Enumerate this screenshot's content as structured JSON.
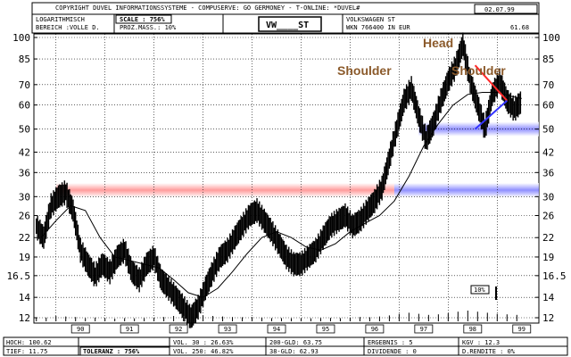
{
  "header": {
    "copyright": "COPYRIGHT  DUVEL INFORMATIONSSYSTEME - COMPUSERVE: GO GERMONEY - T-ONLINE: *DUVEL#",
    "date": "02.07.99",
    "box1_line1": "LOGARITHMISCH",
    "box1_line2": "BEREICH :VOLLE D.",
    "box2_line1": "SCALE : 756%",
    "box2_line2": "PROZ.MASS.: 10%",
    "ticker": "VW____ST",
    "box4_line1": "VOLKSWAGEN ST",
    "box4_line2": "WKN 766400   IN EUR",
    "last_price": "61.68"
  },
  "footer": {
    "hoch": "HOCH: 100.62",
    "tief": "TIEF: 11.75",
    "toleranz": "TOLERANZ : 756%",
    "vol30": "VOL. 30 : 26.63%",
    "vol250": "VOL. 250: 46.82%",
    "gld200": "200-GLD: 63.75",
    "gld38": "38-GLD: 62.93",
    "ergebnis": "ERGEBNIS :  5",
    "dividende": "DIVIDENDE :  0",
    "kgv": "KGV       : 12.3",
    "rendite": "D.RENDITE : 0%"
  },
  "annotations": {
    "head": "Head",
    "shoulder_left": "Shoulder",
    "shoulder_right": "Shoulder",
    "percent_box": "10%"
  },
  "colors": {
    "annotation_text": "#8b5a2b",
    "red_band": "#ff8a8a",
    "blue_band": "#7b7bff",
    "red_line": "#ff2a2a",
    "blue_line": "#3333ff",
    "grid": "#000000"
  },
  "chart_data": {
    "type": "line",
    "scale": "log",
    "ylim": [
      12,
      100
    ],
    "y_ticks": [
      12,
      14,
      16.5,
      19,
      22,
      26,
      30,
      36,
      42,
      50,
      60,
      70,
      85,
      100
    ],
    "y_tick_labels": [
      "12",
      "14",
      "16.5",
      "19",
      "22",
      "26",
      "30",
      "36",
      "42",
      "50",
      "60",
      "70",
      "85",
      "100"
    ],
    "x_ticks": [
      1990,
      1991,
      1992,
      1993,
      1994,
      1995,
      1996,
      1997,
      1998,
      1999
    ],
    "x_tick_labels": [
      "90",
      "91",
      "92",
      "93",
      "94",
      "95",
      "96",
      "97",
      "98",
      "99"
    ],
    "xlim": [
      1989.55,
      1999.85
    ],
    "price": {
      "x": [
        1989.6,
        1989.75,
        1989.9,
        1990.05,
        1990.2,
        1990.35,
        1990.5,
        1990.65,
        1990.8,
        1990.95,
        1991.1,
        1991.25,
        1991.4,
        1991.55,
        1991.7,
        1991.85,
        1992.0,
        1992.15,
        1992.3,
        1992.45,
        1992.6,
        1992.75,
        1992.9,
        1993.05,
        1993.2,
        1993.35,
        1993.5,
        1993.65,
        1993.8,
        1993.95,
        1994.1,
        1994.25,
        1994.4,
        1994.55,
        1994.7,
        1994.85,
        1995.0,
        1995.15,
        1995.3,
        1995.45,
        1995.6,
        1995.75,
        1995.9,
        1996.05,
        1996.2,
        1996.35,
        1996.5,
        1996.65,
        1996.8,
        1996.95,
        1997.1,
        1997.25,
        1997.4,
        1997.55,
        1997.7,
        1997.85,
        1998.0,
        1998.15,
        1998.3,
        1998.45,
        1998.6,
        1998.75,
        1998.9,
        1999.05,
        1999.2,
        1999.35,
        1999.5
      ],
      "y": [
        24,
        22,
        28,
        30,
        31,
        27,
        20,
        18,
        16.5,
        18,
        17,
        19,
        20,
        17,
        16,
        18,
        19,
        16,
        15,
        14,
        13,
        12,
        13,
        15,
        17,
        19,
        20,
        22,
        24,
        26,
        27,
        25,
        23,
        21,
        19,
        18,
        18,
        19,
        20,
        22,
        24,
        25,
        26,
        24,
        25,
        27,
        29,
        32,
        40,
        50,
        62,
        68,
        55,
        46,
        52,
        62,
        72,
        80,
        95,
        72,
        60,
        50,
        65,
        72,
        62,
        58,
        61.7
      ]
    },
    "moving_average": {
      "x": [
        1989.7,
        1990.0,
        1990.3,
        1990.6,
        1990.9,
        1991.2,
        1991.5,
        1991.8,
        1992.1,
        1992.4,
        1992.7,
        1993.0,
        1993.3,
        1993.6,
        1993.9,
        1994.2,
        1994.5,
        1994.8,
        1995.1,
        1995.4,
        1995.7,
        1996.0,
        1996.3,
        1996.6,
        1996.9,
        1997.2,
        1997.5,
        1997.8,
        1998.1,
        1998.4,
        1998.7,
        1999.0,
        1999.3,
        1999.5
      ],
      "y": [
        22,
        25,
        28,
        27,
        22,
        19,
        18.5,
        18,
        17.5,
        16,
        14.5,
        14,
        15,
        17,
        19.5,
        22,
        23,
        22,
        20.5,
        20,
        21,
        23,
        24.5,
        26,
        29,
        35,
        44,
        52,
        60,
        65,
        66,
        66,
        64,
        63
      ]
    },
    "bands": [
      {
        "name": "resistance-red",
        "value": 31.5,
        "x_start": 1990.0,
        "x_end": 1996.9
      },
      {
        "name": "support-blue-50",
        "value": 50,
        "x_start": 1997.4,
        "x_end": 1999.85
      },
      {
        "name": "support-blue-31",
        "value": 31.5,
        "x_start": 1996.9,
        "x_end": 1999.85
      }
    ],
    "trendlines": [
      {
        "name": "red-downtrend",
        "x": [
          1998.55,
          1999.2
        ],
        "y": [
          81,
          62
        ]
      },
      {
        "name": "blue-uptrend",
        "x": [
          1998.55,
          1999.2
        ],
        "y": [
          50,
          62
        ]
      }
    ],
    "volume": {
      "x": [
        1989.6,
        1989.8,
        1990.0,
        1990.2,
        1990.4,
        1990.6,
        1990.8,
        1991.0,
        1991.2,
        1991.4,
        1991.6,
        1991.8,
        1992.0,
        1992.2,
        1992.4,
        1992.6,
        1992.8,
        1993.0,
        1993.2,
        1993.4,
        1993.6,
        1993.8,
        1994.0,
        1994.2,
        1994.4,
        1994.6,
        1994.8,
        1995.0,
        1995.2,
        1995.4,
        1995.6,
        1995.8,
        1996.0,
        1996.2,
        1996.4,
        1996.6,
        1996.8,
        1997.0,
        1997.2,
        1997.4,
        1997.6,
        1997.8,
        1998.0,
        1998.2,
        1998.4,
        1998.6,
        1998.8,
        1999.0,
        1999.2,
        1999.4
      ],
      "y": [
        0.3,
        0.35,
        0.5,
        0.45,
        0.4,
        0.3,
        0.35,
        0.3,
        0.25,
        0.3,
        0.28,
        0.3,
        0.35,
        0.4,
        0.5,
        0.6,
        0.7,
        0.55,
        0.5,
        0.45,
        0.4,
        0.38,
        0.4,
        0.35,
        0.3,
        0.3,
        0.28,
        0.26,
        0.28,
        0.3,
        0.32,
        0.3,
        0.35,
        0.4,
        0.38,
        0.45,
        0.55,
        0.7,
        0.8,
        0.7,
        0.6,
        0.65,
        0.75,
        0.9,
        1.0,
        0.9,
        0.8,
        0.7,
        0.65,
        0.6
      ]
    }
  }
}
